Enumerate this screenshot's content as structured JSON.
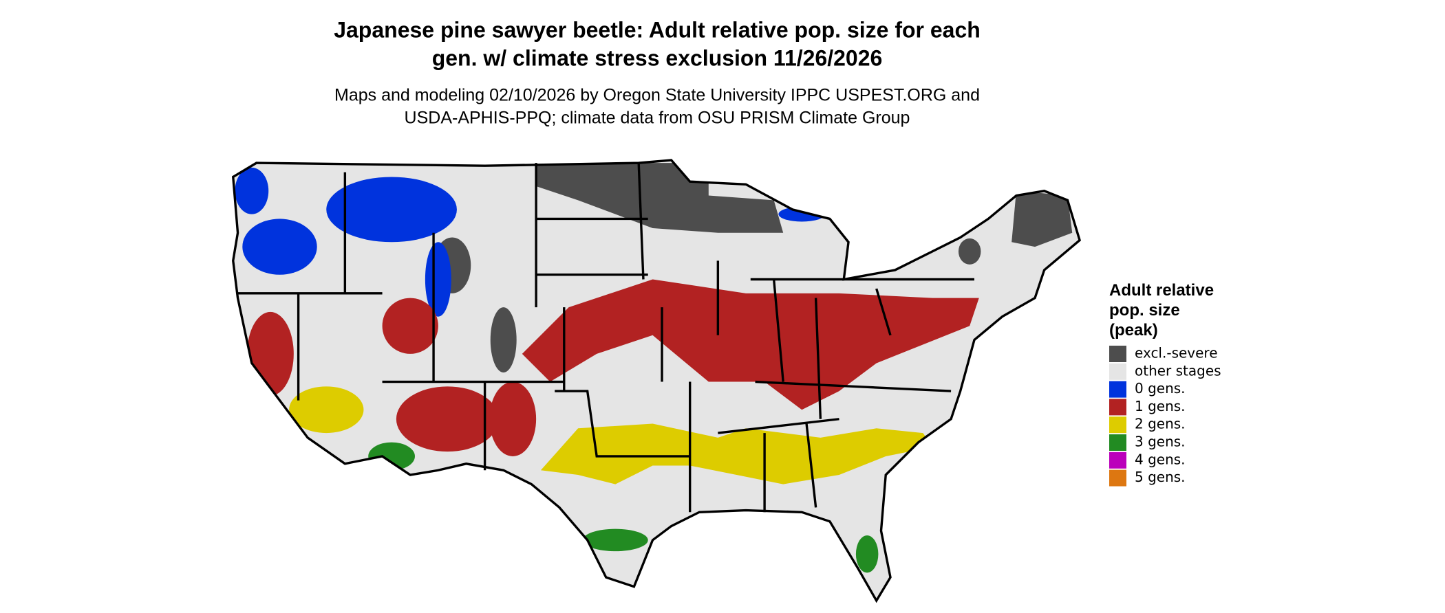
{
  "title": [
    "Japanese pine sawyer beetle: Adult relative pop. size for each",
    "gen. w/ climate stress exclusion 11/26/2026"
  ],
  "subtitle": [
    "Maps and modeling 02/10/2026 by Oregon State University IPPC USPEST.ORG and",
    "USDA-APHIS-PPQ; climate data from OSU PRISM Climate Group"
  ],
  "legend": {
    "title": [
      "Adult relative",
      "pop. size",
      "(peak)"
    ],
    "items": [
      {
        "label": "excl.-severe",
        "color": "#4d4d4d"
      },
      {
        "label": "other stages",
        "color": "#e5e5e5"
      },
      {
        "label": "0 gens.",
        "color": "#0033dd"
      },
      {
        "label": "1 gens.",
        "color": "#b22222"
      },
      {
        "label": "2 gens.",
        "color": "#ddcc00"
      },
      {
        "label": "3 gens.",
        "color": "#228b22"
      },
      {
        "label": "4 gens.",
        "color": "#bb00bb"
      },
      {
        "label": "5 gens.",
        "color": "#dd7711"
      }
    ]
  }
}
